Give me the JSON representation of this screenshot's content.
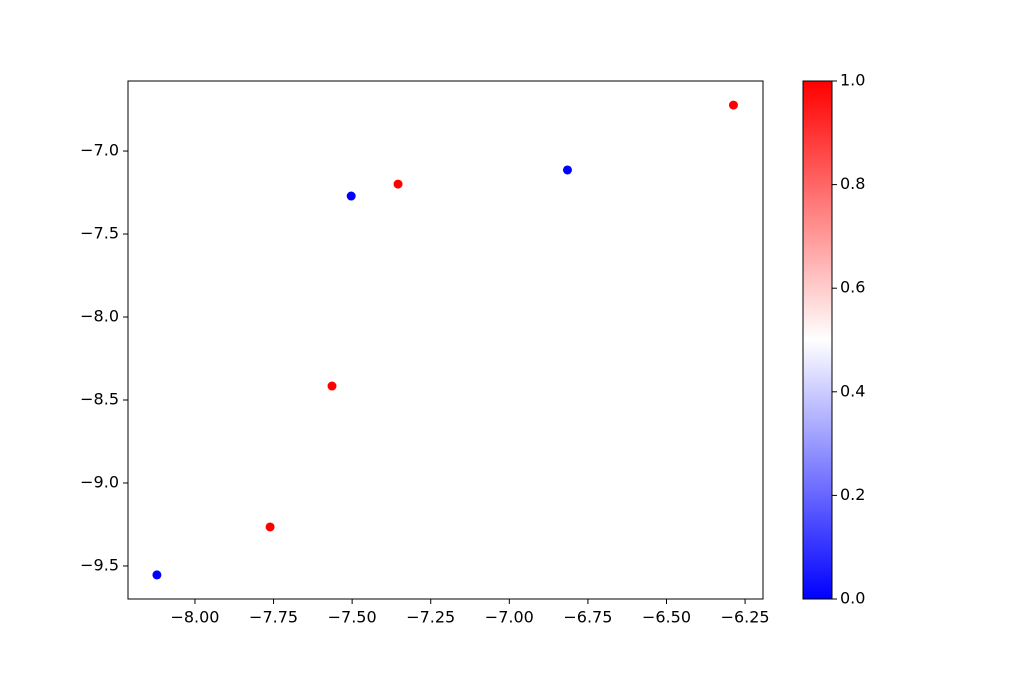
{
  "chart_data": {
    "type": "scatter",
    "x": [
      -8.121,
      -7.761,
      -7.564,
      -7.503,
      -7.354,
      -6.815,
      -6.287
    ],
    "y": [
      -9.554,
      -9.265,
      -8.416,
      -7.271,
      -7.199,
      -7.114,
      -6.723
    ],
    "c": [
      0,
      1,
      1,
      0,
      1,
      0,
      1
    ],
    "cmap_colors": [
      "#0000ff",
      "#ffffff",
      "#ff0000"
    ],
    "xlim": [
      -8.213,
      -6.193
    ],
    "ylim": [
      -9.699,
      -6.578
    ],
    "clim": [
      0,
      1
    ],
    "xticks": [
      {
        "value": -8.0,
        "label": "−8.00"
      },
      {
        "value": -7.75,
        "label": "−7.75"
      },
      {
        "value": -7.5,
        "label": "−7.50"
      },
      {
        "value": -7.25,
        "label": "−7.25"
      },
      {
        "value": -7.0,
        "label": "−7.00"
      },
      {
        "value": -6.75,
        "label": "−6.75"
      },
      {
        "value": -6.5,
        "label": "−6.50"
      },
      {
        "value": -6.25,
        "label": "−6.25"
      }
    ],
    "yticks": [
      {
        "value": -7.0,
        "label": "−7.0"
      },
      {
        "value": -7.5,
        "label": "−7.5"
      },
      {
        "value": -8.0,
        "label": "−8.0"
      },
      {
        "value": -8.5,
        "label": "−8.5"
      },
      {
        "value": -9.0,
        "label": "−9.0"
      },
      {
        "value": -9.5,
        "label": "−9.5"
      }
    ],
    "cticks": [
      {
        "value": 0,
        "label": "0.0"
      },
      {
        "value": 0.2,
        "label": "0.2"
      },
      {
        "value": 0.4,
        "label": "0.4"
      },
      {
        "value": 0.6,
        "label": "0.6"
      },
      {
        "value": 0.8,
        "label": "0.8"
      },
      {
        "value": 1,
        "label": "1.0"
      }
    ]
  }
}
